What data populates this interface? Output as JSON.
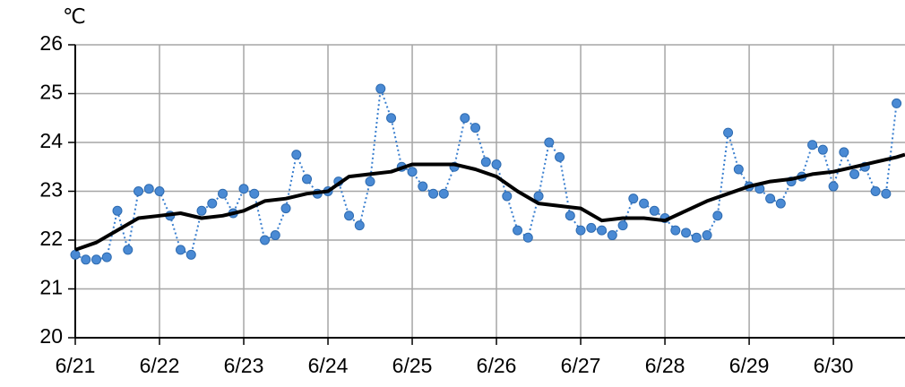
{
  "chart_data": {
    "type": "line",
    "y_label": "℃",
    "xlim": [
      0,
      9.85
    ],
    "xticks": [
      {
        "value": 0,
        "label": "6/21"
      },
      {
        "value": 1,
        "label": "6/22"
      },
      {
        "value": 2,
        "label": "6/23"
      },
      {
        "value": 3,
        "label": "6/24"
      },
      {
        "value": 4,
        "label": "6/25"
      },
      {
        "value": 5,
        "label": "6/26"
      },
      {
        "value": 6,
        "label": "6/27"
      },
      {
        "value": 7,
        "label": "6/28"
      },
      {
        "value": 8,
        "label": "6/29"
      },
      {
        "value": 9,
        "label": "6/30"
      }
    ],
    "ylim": [
      20,
      26
    ],
    "yticks": [
      20,
      21,
      22,
      23,
      24,
      25,
      26
    ],
    "grid": true,
    "series": [
      {
        "color": "#3a7fcf",
        "style": "dotted-markers",
        "x": [
          0,
          0.125,
          0.25,
          0.375,
          0.5,
          0.625,
          0.75,
          0.875,
          1,
          1.125,
          1.25,
          1.375,
          1.5,
          1.625,
          1.75,
          1.875,
          2,
          2.125,
          2.25,
          2.375,
          2.5,
          2.625,
          2.75,
          2.875,
          3,
          3.125,
          3.25,
          3.375,
          3.5,
          3.625,
          3.75,
          3.875,
          4,
          4.125,
          4.25,
          4.375,
          4.5,
          4.625,
          4.75,
          4.875,
          5,
          5.125,
          5.25,
          5.375,
          5.5,
          5.625,
          5.75,
          5.875,
          6,
          6.125,
          6.25,
          6.375,
          6.5,
          6.625,
          6.75,
          6.875,
          7,
          7.125,
          7.25,
          7.375,
          7.5,
          7.625,
          7.75,
          7.875,
          8,
          8.125,
          8.25,
          8.375,
          8.5,
          8.625,
          8.75,
          8.875,
          9,
          9.125,
          9.25,
          9.375,
          9.5,
          9.625,
          9.75
        ],
        "values": [
          21.7,
          21.6,
          21.6,
          21.65,
          22.6,
          21.8,
          23.0,
          23.05,
          23.0,
          22.5,
          21.8,
          21.7,
          22.6,
          22.75,
          22.95,
          22.55,
          23.05,
          22.95,
          22.0,
          22.1,
          22.65,
          23.75,
          23.25,
          22.95,
          23.0,
          23.2,
          22.5,
          22.3,
          23.2,
          25.1,
          24.5,
          23.5,
          23.4,
          23.1,
          22.95,
          22.95,
          23.5,
          24.5,
          24.3,
          23.6,
          23.55,
          22.9,
          22.2,
          22.05,
          22.9,
          24.0,
          23.7,
          22.5,
          22.2,
          22.25,
          22.2,
          22.1,
          22.3,
          22.85,
          22.75,
          22.6,
          22.45,
          22.2,
          22.15,
          22.05,
          22.1,
          22.5,
          24.2,
          23.45,
          23.1,
          23.05,
          22.85,
          22.75,
          23.2,
          23.3,
          23.95,
          23.85,
          23.1,
          23.8,
          23.35,
          23.5,
          23.0,
          22.95,
          24.8
        ]
      },
      {
        "color": "#000000",
        "style": "solid",
        "x": [
          0,
          0.25,
          0.5,
          0.75,
          1,
          1.25,
          1.5,
          1.75,
          2,
          2.25,
          2.5,
          2.75,
          3,
          3.25,
          3.5,
          3.75,
          4,
          4.25,
          4.5,
          4.75,
          5,
          5.25,
          5.5,
          5.75,
          6,
          6.25,
          6.5,
          6.75,
          7,
          7.25,
          7.5,
          7.75,
          8,
          8.25,
          8.5,
          8.75,
          9,
          9.25,
          9.5,
          9.75,
          9.85
        ],
        "values": [
          21.8,
          21.95,
          22.2,
          22.45,
          22.5,
          22.55,
          22.45,
          22.5,
          22.6,
          22.8,
          22.85,
          22.95,
          23.0,
          23.3,
          23.35,
          23.4,
          23.55,
          23.55,
          23.55,
          23.45,
          23.3,
          23.0,
          22.75,
          22.7,
          22.65,
          22.4,
          22.45,
          22.45,
          22.4,
          22.6,
          22.8,
          22.95,
          23.1,
          23.2,
          23.25,
          23.35,
          23.4,
          23.5,
          23.6,
          23.7,
          23.75
        ]
      }
    ]
  }
}
